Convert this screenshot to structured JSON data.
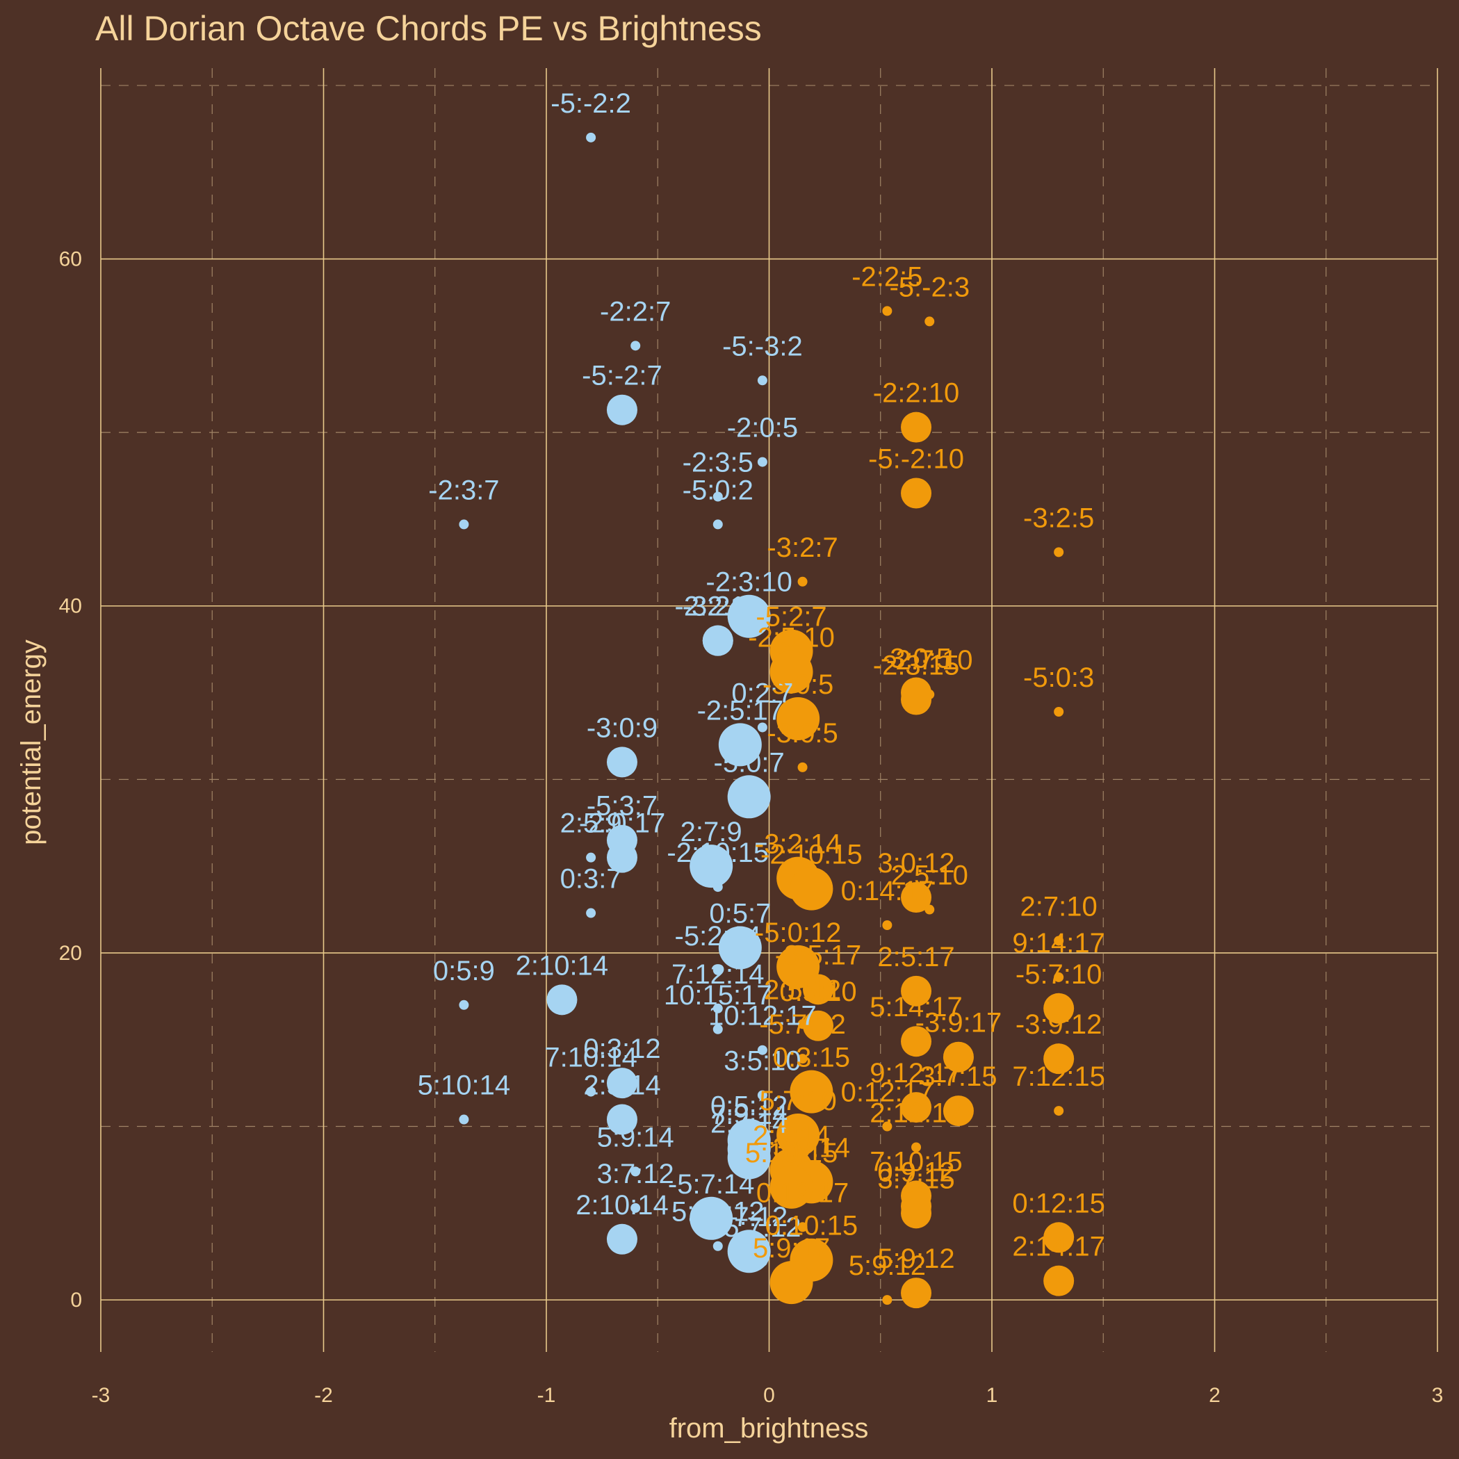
{
  "chart_data": {
    "type": "scatter",
    "title": "All Dorian Octave Chords PE vs Brightness",
    "xlabel": "from_brightness",
    "ylabel": "potential_energy",
    "xlim": [
      -3,
      3
    ],
    "ylim": [
      -3,
      71
    ],
    "x_ticks": [
      -3,
      -2,
      -1,
      0,
      1,
      2,
      3
    ],
    "y_ticks": [
      0,
      20,
      40,
      60
    ],
    "grid": true,
    "legend": "none",
    "colors": {
      "negative": "#a6d4f2",
      "positive": "#f19a0b",
      "background": "#4e3126",
      "text": "#f5d39a"
    },
    "series": [
      {
        "color": "#a6d4f2",
        "points": [
          {
            "label": "-5:-2:2",
            "x": -0.8,
            "y": 67.0,
            "size": 1
          },
          {
            "label": "-2:2:7",
            "x": -0.6,
            "y": 55.0,
            "size": 1
          },
          {
            "label": "-5:-3:2",
            "x": -0.03,
            "y": 53.0,
            "size": 1
          },
          {
            "label": "-5:-2:7",
            "x": -0.66,
            "y": 51.3,
            "size": 2
          },
          {
            "label": "-2:0:5",
            "x": -0.03,
            "y": 48.3,
            "size": 1
          },
          {
            "label": "-2:3:5",
            "x": -0.23,
            "y": 46.3,
            "size": 1
          },
          {
            "label": "-5:0:2",
            "x": -0.23,
            "y": 44.7,
            "size": 1
          },
          {
            "label": "-2:3:7",
            "x": -1.37,
            "y": 44.7,
            "size": 1
          },
          {
            "label": "-3:2:9",
            "x": -0.23,
            "y": 38.0,
            "size": 2
          },
          {
            "label": "-2:3:10",
            "x": -0.09,
            "y": 39.4,
            "size": 3
          },
          {
            "label": "-2:2:14",
            "x": -0.23,
            "y": 38.0,
            "size": 2
          },
          {
            "label": "0:2:7",
            "x": -0.03,
            "y": 33.0,
            "size": 1
          },
          {
            "label": "-2:5:17",
            "x": -0.13,
            "y": 32.0,
            "size": 3
          },
          {
            "label": "-3:0:9",
            "x": -0.66,
            "y": 31.0,
            "size": 2
          },
          {
            "label": "-5:0:7",
            "x": -0.09,
            "y": 29.0,
            "size": 3
          },
          {
            "label": "-5:3:7",
            "x": -0.66,
            "y": 26.5,
            "size": 2
          },
          {
            "label": "2:5:9",
            "x": -0.8,
            "y": 25.5,
            "size": 1
          },
          {
            "label": "-2:0:17",
            "x": -0.66,
            "y": 25.5,
            "size": 2
          },
          {
            "label": "2:7:9",
            "x": -0.26,
            "y": 25.0,
            "size": 3
          },
          {
            "label": "-2:10:15",
            "x": -0.23,
            "y": 23.8,
            "size": 1
          },
          {
            "label": "0:3:7",
            "x": -0.8,
            "y": 22.3,
            "size": 1
          },
          {
            "label": "-5:2:14",
            "x": -0.23,
            "y": 19.0,
            "size": 1
          },
          {
            "label": "0:5:7",
            "x": -0.13,
            "y": 20.3,
            "size": 3
          },
          {
            "label": "0:5:9",
            "x": -1.37,
            "y": 17.0,
            "size": 1
          },
          {
            "label": "2:10:14",
            "x": -0.93,
            "y": 17.3,
            "size": 2
          },
          {
            "label": "7:12:14",
            "x": -0.23,
            "y": 16.8,
            "size": 1
          },
          {
            "label": "10:15:17",
            "x": -0.23,
            "y": 15.6,
            "size": 1
          },
          {
            "label": "10:12:17",
            "x": -0.03,
            "y": 14.4,
            "size": 1
          },
          {
            "label": "7:10:14",
            "x": -0.8,
            "y": 12.0,
            "size": 1
          },
          {
            "label": "0:3:12",
            "x": -0.66,
            "y": 12.5,
            "size": 2
          },
          {
            "label": "3:5:10",
            "x": -0.03,
            "y": 11.8,
            "size": 1
          },
          {
            "label": "5:10:14",
            "x": -1.37,
            "y": 10.4,
            "size": 1
          },
          {
            "label": "2:5:14",
            "x": -0.66,
            "y": 10.4,
            "size": 2
          },
          {
            "label": "0:5:12",
            "x": -0.09,
            "y": 9.2,
            "size": 3
          },
          {
            "label": "7:9:14",
            "x": -0.09,
            "y": 8.7,
            "size": 3
          },
          {
            "label": "2:7:14",
            "x": -0.09,
            "y": 8.2,
            "size": 3
          },
          {
            "label": "5:9:14",
            "x": -0.6,
            "y": 7.4,
            "size": 1
          },
          {
            "label": "3:7:12",
            "x": -0.6,
            "y": 5.3,
            "size": 1
          },
          {
            "label": "-5:7:14",
            "x": -0.26,
            "y": 4.7,
            "size": 3
          },
          {
            "label": "2:10:14",
            "x": -0.66,
            "y": 3.5,
            "size": 2
          },
          {
            "label": "5:10:12",
            "x": -0.23,
            "y": 3.1,
            "size": 1
          },
          {
            "label": "5:7:12",
            "x": -0.09,
            "y": 2.8,
            "size": 3
          },
          {
            "label": "5:7:12",
            "x": -0.03,
            "y": 2.2,
            "size": 1
          }
        ]
      },
      {
        "color": "#f19a0b",
        "points": [
          {
            "label": "-2:2:5",
            "x": 0.53,
            "y": 57.0,
            "size": 1
          },
          {
            "label": "-5:-2:3",
            "x": 0.72,
            "y": 56.4,
            "size": 1
          },
          {
            "label": "-2:2:10",
            "x": 0.66,
            "y": 50.3,
            "size": 2
          },
          {
            "label": "-5:-2:10",
            "x": 0.66,
            "y": 46.5,
            "size": 2
          },
          {
            "label": "-3:2:5",
            "x": 1.3,
            "y": 43.1,
            "size": 1
          },
          {
            "label": "-3:2:7",
            "x": 0.15,
            "y": 41.4,
            "size": 1
          },
          {
            "label": "-5:2:7",
            "x": 0.1,
            "y": 37.4,
            "size": 3
          },
          {
            "label": "-2:5:10",
            "x": 0.1,
            "y": 36.2,
            "size": 3
          },
          {
            "label": "-2:3:15",
            "x": 0.66,
            "y": 34.6,
            "size": 2
          },
          {
            "label": "-2:7:10",
            "x": 0.72,
            "y": 34.9,
            "size": 1
          },
          {
            "label": "-3:0:5",
            "x": 0.66,
            "y": 35.0,
            "size": 2
          },
          {
            "label": "-5:0:3",
            "x": 1.3,
            "y": 33.9,
            "size": 1
          },
          {
            "label": "-5:0:5",
            "x": 0.13,
            "y": 33.5,
            "size": 3
          },
          {
            "label": "-3:0:5",
            "x": 0.15,
            "y": 30.7,
            "size": 1
          },
          {
            "label": "-3:2:14",
            "x": 0.13,
            "y": 24.3,
            "size": 3
          },
          {
            "label": "-2:10:15",
            "x": 0.19,
            "y": 23.7,
            "size": 3
          },
          {
            "label": "3:0:12",
            "x": 0.66,
            "y": 23.2,
            "size": 2
          },
          {
            "label": "2:5:10",
            "x": 0.72,
            "y": 22.5,
            "size": 1
          },
          {
            "label": "0:14:17",
            "x": 0.53,
            "y": 21.6,
            "size": 1
          },
          {
            "label": "2:7:10",
            "x": 1.3,
            "y": 20.7,
            "size": 1
          },
          {
            "label": "-5:0:12",
            "x": 0.13,
            "y": 19.2,
            "size": 3
          },
          {
            "label": "9:14:17",
            "x": 1.3,
            "y": 18.6,
            "size": 1
          },
          {
            "label": "-3:5:17",
            "x": 0.22,
            "y": 17.9,
            "size": 2
          },
          {
            "label": "2:5:17",
            "x": 0.66,
            "y": 17.8,
            "size": 2
          },
          {
            "label": "-5:7:10",
            "x": 1.3,
            "y": 16.8,
            "size": 2
          },
          {
            "label": "2:5:12",
            "x": 0.15,
            "y": 15.9,
            "size": 1
          },
          {
            "label": "0:5:10",
            "x": 0.22,
            "y": 15.8,
            "size": 2
          },
          {
            "label": "5:14:17",
            "x": 0.66,
            "y": 14.9,
            "size": 2
          },
          {
            "label": "-3:9:17",
            "x": 0.85,
            "y": 14.0,
            "size": 2
          },
          {
            "label": "-3:9:12",
            "x": 1.3,
            "y": 13.9,
            "size": 2
          },
          {
            "label": "-5:7:12",
            "x": 0.15,
            "y": 13.9,
            "size": 1
          },
          {
            "label": "0:3:15",
            "x": 0.19,
            "y": 12.0,
            "size": 3
          },
          {
            "label": "9:12:17",
            "x": 0.66,
            "y": 11.1,
            "size": 2
          },
          {
            "label": "3:7:15",
            "x": 0.85,
            "y": 10.9,
            "size": 2
          },
          {
            "label": "7:12:15",
            "x": 1.3,
            "y": 10.9,
            "size": 1
          },
          {
            "label": "0:12:17",
            "x": 0.53,
            "y": 10.0,
            "size": 1
          },
          {
            "label": "5:7:10",
            "x": 0.13,
            "y": 9.5,
            "size": 3
          },
          {
            "label": "2:12:17",
            "x": 0.66,
            "y": 8.8,
            "size": 1
          },
          {
            "label": "2:3:14",
            "x": 0.1,
            "y": 7.5,
            "size": 3
          },
          {
            "label": "3:9:14",
            "x": 0.19,
            "y": 6.8,
            "size": 3
          },
          {
            "label": "7:10:15",
            "x": 0.66,
            "y": 6.0,
            "size": 2
          },
          {
            "label": "0:9:12",
            "x": 0.66,
            "y": 5.4,
            "size": 2
          },
          {
            "label": "5:10:15",
            "x": 0.1,
            "y": 6.5,
            "size": 3
          },
          {
            "label": "3:7:15",
            "x": 0.66,
            "y": 5.0,
            "size": 2
          },
          {
            "label": "0:12:15",
            "x": 1.3,
            "y": 3.6,
            "size": 2
          },
          {
            "label": "0:12:17",
            "x": 0.15,
            "y": 4.2,
            "size": 1
          },
          {
            "label": "0:10:15",
            "x": 0.19,
            "y": 2.3,
            "size": 3
          },
          {
            "label": "2:14:17",
            "x": 1.3,
            "y": 1.1,
            "size": 2
          },
          {
            "label": "5:9:17",
            "x": 0.1,
            "y": 1.0,
            "size": 3
          },
          {
            "label": "5:9:12",
            "x": 0.66,
            "y": 0.4,
            "size": 2
          },
          {
            "label": "5:9:12",
            "x": 0.53,
            "y": 0.0,
            "size": 1
          }
        ]
      }
    ]
  }
}
